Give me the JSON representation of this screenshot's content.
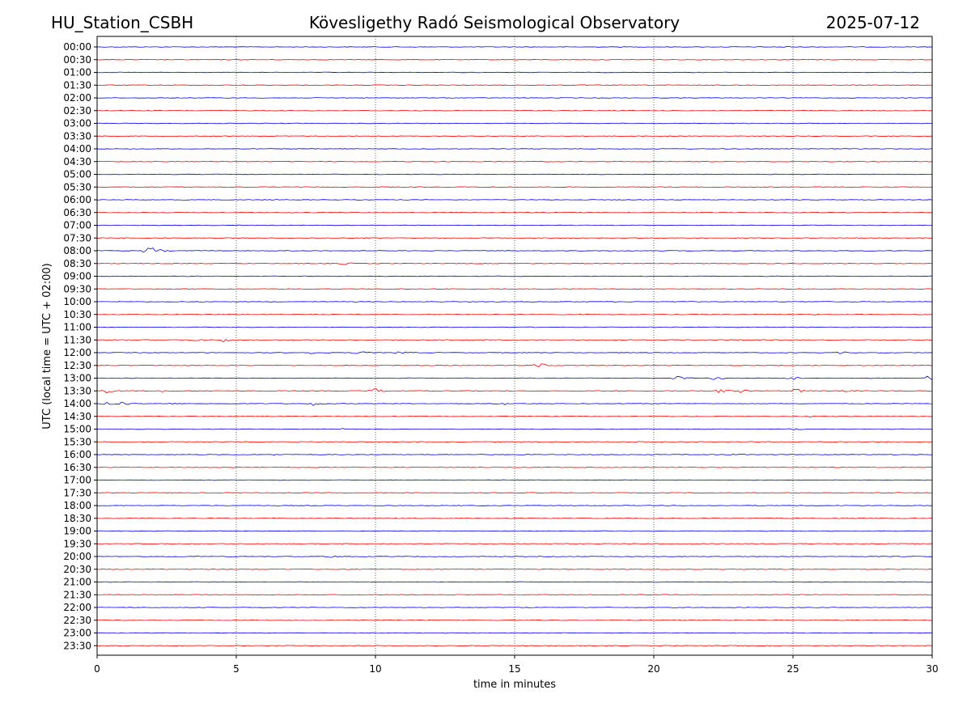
{
  "header": {
    "station": "HU_Station_CSBH",
    "observatory": "Kövesligethy Radó Seismological Observatory",
    "date": "2025-07-12"
  },
  "chart_data": {
    "type": "line",
    "xlabel": "time in minutes",
    "ylabel": "UTC (local time = UTC + 02:00)",
    "xlim": [
      0,
      30
    ],
    "x_ticks": [
      "0",
      "5",
      "10",
      "15",
      "20",
      "25",
      "30"
    ],
    "x_grid_minutes": [
      5,
      10,
      15,
      20,
      25
    ],
    "grid": "vertical dotted",
    "trace_colors": [
      "#0000ff",
      "#ff0000"
    ],
    "rows": [
      {
        "label": "00:00",
        "events": [
          {
            "t": 24.6,
            "amp": 2
          }
        ]
      },
      {
        "label": "00:30",
        "events": []
      },
      {
        "label": "01:00",
        "events": []
      },
      {
        "label": "01:30",
        "events": []
      },
      {
        "label": "02:00",
        "events": [
          {
            "t": 28.9,
            "amp": 1
          }
        ]
      },
      {
        "label": "02:30",
        "events": []
      },
      {
        "label": "03:00",
        "events": []
      },
      {
        "label": "03:30",
        "events": []
      },
      {
        "label": "04:00",
        "events": []
      },
      {
        "label": "04:30",
        "events": []
      },
      {
        "label": "05:00",
        "events": []
      },
      {
        "label": "05:30",
        "events": []
      },
      {
        "label": "06:00",
        "events": [
          {
            "t": 6.4,
            "amp": 1
          }
        ]
      },
      {
        "label": "06:30",
        "events": []
      },
      {
        "label": "07:00",
        "events": []
      },
      {
        "label": "07:30",
        "events": []
      },
      {
        "label": "08:00",
        "events": [
          {
            "t": 1.8,
            "amp": 7
          }
        ]
      },
      {
        "label": "08:30",
        "events": [
          {
            "t": 8.8,
            "amp": 2
          }
        ]
      },
      {
        "label": "09:00",
        "events": []
      },
      {
        "label": "09:30",
        "events": []
      },
      {
        "label": "10:00",
        "events": []
      },
      {
        "label": "10:30",
        "events": [
          {
            "t": 25.8,
            "amp": 1
          }
        ]
      },
      {
        "label": "11:00",
        "events": [
          {
            "t": 19.8,
            "amp": 1
          }
        ]
      },
      {
        "label": "11:30",
        "events": [
          {
            "t": 4.5,
            "amp": 3
          },
          {
            "t": 3.4,
            "amp": 2
          }
        ]
      },
      {
        "label": "12:00",
        "events": [
          {
            "t": 7.6,
            "amp": 2
          },
          {
            "t": 9.3,
            "amp": 3
          },
          {
            "t": 10.8,
            "amp": 3
          },
          {
            "t": 26.6,
            "amp": 2
          }
        ]
      },
      {
        "label": "12:30",
        "events": [
          {
            "t": 15.8,
            "amp": 4
          }
        ]
      },
      {
        "label": "13:00",
        "events": [
          {
            "t": 20.8,
            "amp": 3
          },
          {
            "t": 22.1,
            "amp": 3
          },
          {
            "t": 24.9,
            "amp": 3
          },
          {
            "t": 29.8,
            "amp": 4
          }
        ]
      },
      {
        "label": "13:30",
        "events": [
          {
            "t": 0.3,
            "amp": 3
          },
          {
            "t": 2.3,
            "amp": 2
          },
          {
            "t": 9.9,
            "amp": 4
          },
          {
            "t": 22.3,
            "amp": 3
          },
          {
            "t": 23.0,
            "amp": 3
          },
          {
            "t": 25.0,
            "amp": 4
          },
          {
            "t": 26.8,
            "amp": 2
          }
        ]
      },
      {
        "label": "14:00",
        "events": [
          {
            "t": 0.2,
            "amp": 4
          },
          {
            "t": 0.8,
            "amp": 3
          },
          {
            "t": 2.4,
            "amp": 2
          },
          {
            "t": 7.7,
            "amp": 3
          },
          {
            "t": 14.5,
            "amp": 2
          }
        ]
      },
      {
        "label": "14:30",
        "events": [
          {
            "t": 25.6,
            "amp": 1
          }
        ]
      },
      {
        "label": "15:00",
        "events": [
          {
            "t": 8.7,
            "amp": 2
          },
          {
            "t": 22.2,
            "amp": 1
          },
          {
            "t": 25.0,
            "amp": 2
          }
        ]
      },
      {
        "label": "15:30",
        "events": [
          {
            "t": 19.3,
            "amp": 1
          }
        ]
      },
      {
        "label": "16:00",
        "events": [
          {
            "t": 6.3,
            "amp": 1
          },
          {
            "t": 22.8,
            "amp": 2
          }
        ]
      },
      {
        "label": "16:30",
        "events": [
          {
            "t": 4.8,
            "amp": 1
          }
        ]
      },
      {
        "label": "17:00",
        "events": []
      },
      {
        "label": "17:30",
        "events": [
          {
            "t": 28.7,
            "amp": 1
          }
        ]
      },
      {
        "label": "18:00",
        "events": []
      },
      {
        "label": "18:30",
        "events": []
      },
      {
        "label": "19:00",
        "events": []
      },
      {
        "label": "19:30",
        "events": []
      },
      {
        "label": "20:00",
        "events": [
          {
            "t": 3.5,
            "amp": 1
          },
          {
            "t": 8.3,
            "amp": 2
          }
        ]
      },
      {
        "label": "20:30",
        "events": []
      },
      {
        "label": "21:00",
        "events": []
      },
      {
        "label": "21:30",
        "events": []
      },
      {
        "label": "22:00",
        "events": []
      },
      {
        "label": "22:30",
        "events": []
      },
      {
        "label": "23:00",
        "events": []
      },
      {
        "label": "23:30",
        "events": []
      }
    ]
  }
}
